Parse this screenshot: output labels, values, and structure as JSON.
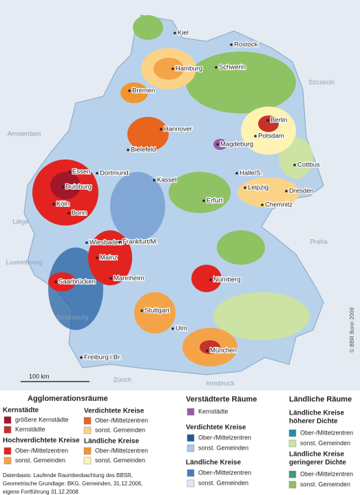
{
  "map": {
    "cities": [
      "Kiel",
      "Rostock",
      "Hamburg",
      "Schwerin",
      "Bremen",
      "Hannover",
      "Berlin",
      "Potsdam",
      "Bielefeld",
      "Magdeburg",
      "Essen",
      "Dortmund",
      "Duisburg",
      "Halle/S.",
      "Cottbus",
      "Kassel",
      "Köln",
      "Bonn",
      "Leipzig",
      "Dresden",
      "Erfurt",
      "Chemnitz",
      "Wiesbaden",
      "Frankfurt/M.",
      "Mainz",
      "Mannheim",
      "Saarbrücken",
      "Nürnberg",
      "Stuttgart",
      "Ulm",
      "Freiburg i.Br.",
      "München"
    ],
    "foreign_places": [
      "Szczecin",
      "Amsterdam",
      "Liège",
      "Praha",
      "Luxembourg",
      "Strasbourg",
      "Zürich",
      "Innsbruck"
    ],
    "scale_label": "100 km",
    "copyright": "© BBR Bonn 2009"
  },
  "legend": {
    "agglomeration": {
      "title": "Agglomerationsräume",
      "core": {
        "heading": "Kernstädte",
        "items": [
          {
            "label": "größere Kernstädte",
            "color": "#a3162a"
          },
          {
            "label": "Kernstädte",
            "color": "#c8302c"
          }
        ]
      },
      "high_density": {
        "heading": "Hochverdichtete Kreise",
        "items": [
          {
            "label": "Ober-/Mittelzentren",
            "color": "#e3231f"
          },
          {
            "label": "sonst. Gemeinden",
            "color": "#f4a446"
          }
        ]
      },
      "dense": {
        "heading": "Verdichtete Kreise",
        "items": [
          {
            "label": "Ober-/Mittelzentren",
            "color": "#e8641f"
          },
          {
            "label": "sonst. Gemeinden",
            "color": "#fbd387"
          }
        ]
      },
      "rural": {
        "heading": "Ländliche Kreise",
        "items": [
          {
            "label": "Ober-/Mittelzentren",
            "color": "#f0962e"
          },
          {
            "label": "sonst. Gemeinden",
            "color": "#fdf3b3"
          }
        ]
      }
    },
    "urbanized": {
      "title": "Verstädterte Räume",
      "core": {
        "items": [
          {
            "label": "Kernstädte",
            "color": "#9a5aa8"
          }
        ]
      },
      "dense": {
        "heading": "Verdichtete Kreise",
        "items": [
          {
            "label": "Ober-/Mittelzentren",
            "color": "#1d5a9e"
          },
          {
            "label": "sonst. Gemeinden",
            "color": "#a9c8e8"
          }
        ]
      },
      "rural": {
        "heading": "Ländliche Kreise",
        "items": [
          {
            "label": "Ober-/Mittelzentren",
            "color": "#4a7cc0"
          },
          {
            "label": "sonst. Gemeinden",
            "color": "#dce8f5"
          }
        ]
      }
    },
    "rural_areas": {
      "title": "Ländliche Räume",
      "higher": {
        "heading": [
          "Ländliche Kreise",
          "höherer Dichte"
        ],
        "items": [
          {
            "label": "Ober-/Mittelzentren",
            "color": "#1f8fa8"
          },
          {
            "label": "sonst. Gemeinden",
            "color": "#cce3a4"
          }
        ]
      },
      "lower": {
        "heading": [
          "Ländliche Kreise",
          "geringerer Dichte"
        ],
        "items": [
          {
            "label": "Ober-/Mittelzentren",
            "color": "#3a9a86"
          },
          {
            "label": "sonst. Gemeinden",
            "color": "#8fc262"
          }
        ]
      }
    }
  },
  "source": [
    "Datenbasis: Laufende Raumbeobachtung des BBSR,",
    "Geometrische Grundlage: BKG, Gemeinden, 31.12.2006,",
    "eigene Fortführung 31.12.2008"
  ]
}
